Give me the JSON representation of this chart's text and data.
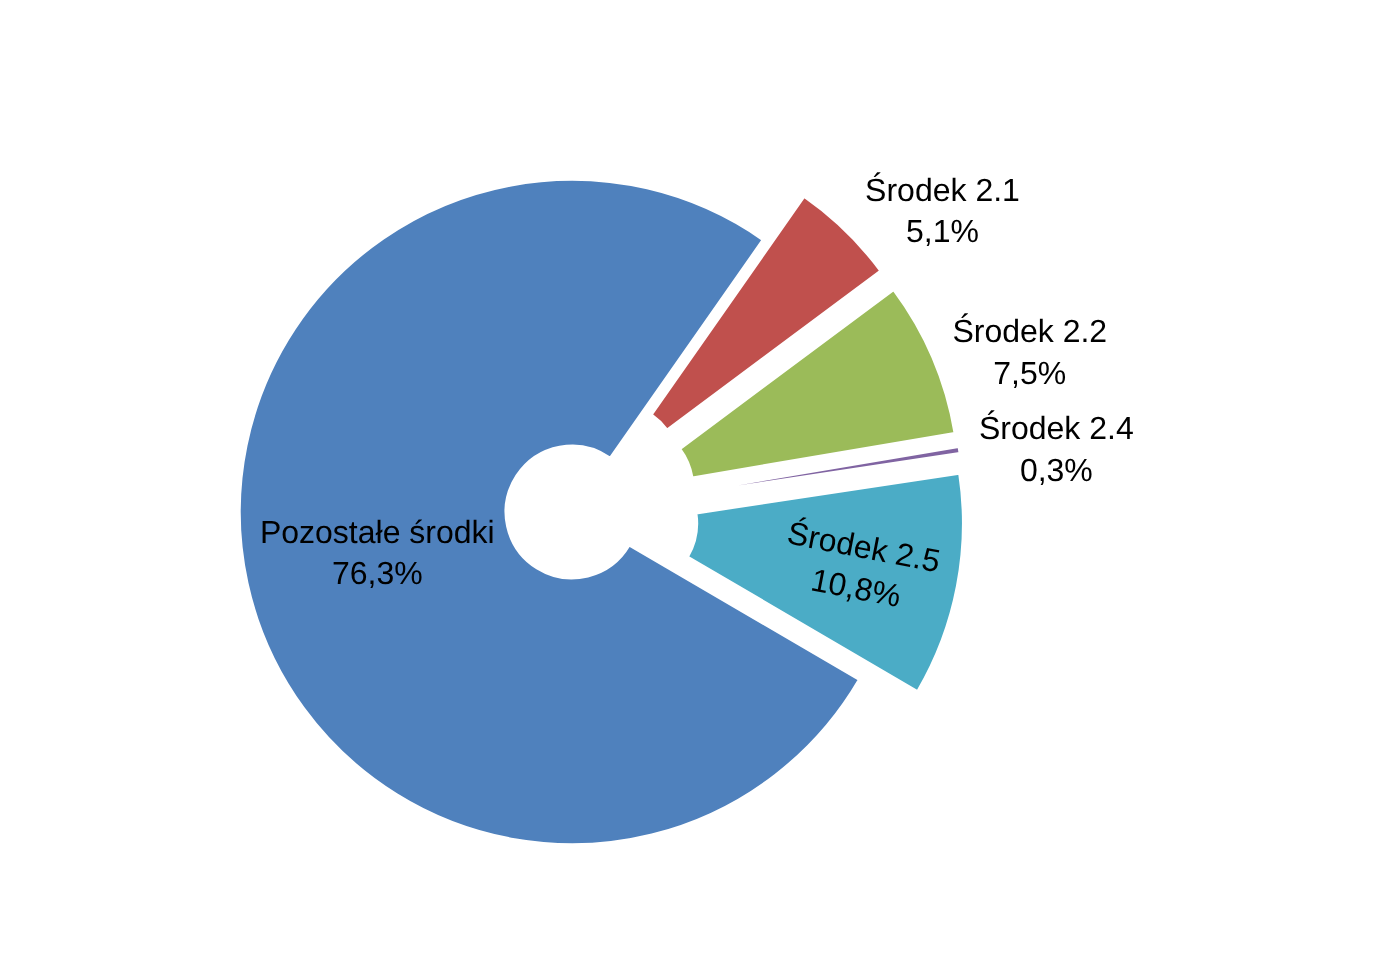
{
  "chart_data": {
    "type": "donut",
    "categories": [
      "Środek 2.1",
      "Środek 2.2",
      "Środek 2.4",
      "Środek 2.5",
      "Pozostałe środki"
    ],
    "values": [
      5.1,
      7.5,
      0.3,
      10.8,
      76.3
    ],
    "value_labels": [
      "5,1%",
      "7,5%",
      "0,3%",
      "10,8%",
      "76,3%"
    ],
    "colors": [
      "#c0504d",
      "#9bbb59",
      "#8064a2",
      "#4bacc6",
      "#4f81bd"
    ],
    "legend": false
  }
}
